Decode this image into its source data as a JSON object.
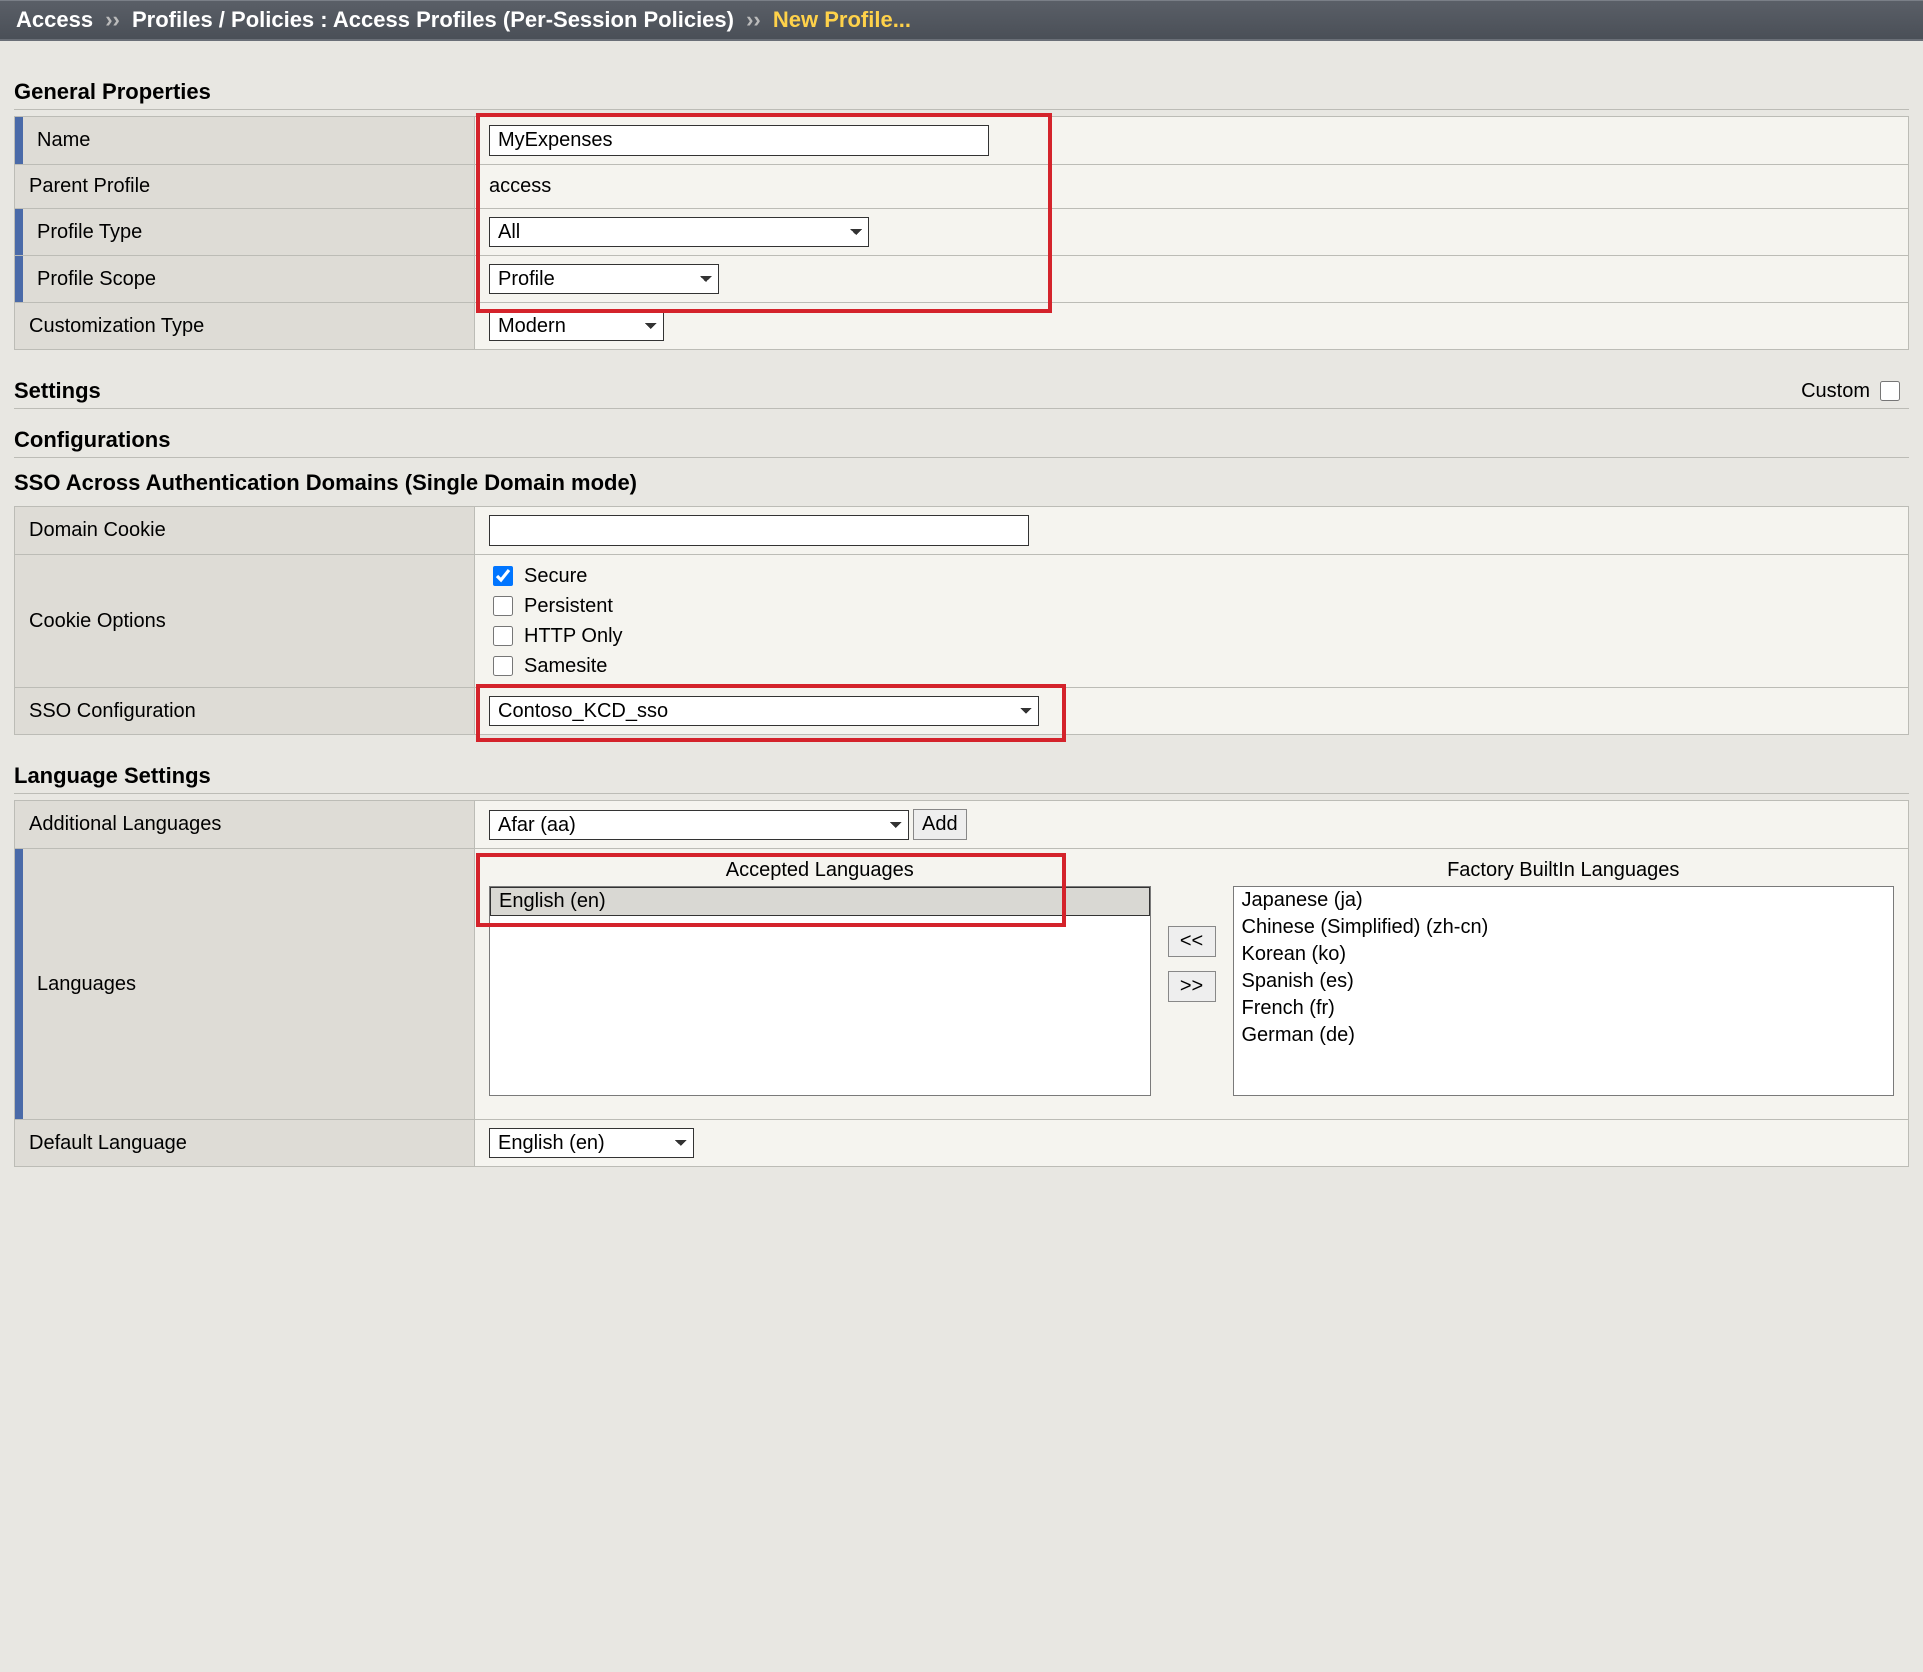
{
  "breadcrumb": {
    "root": "Access",
    "mid": "Profiles / Policies : Access Profiles (Per-Session Policies)",
    "current": "New Profile..."
  },
  "sections": {
    "general": "General Properties",
    "settings": "Settings",
    "custom_label": "Custom",
    "configurations": "Configurations",
    "sso_domains": "SSO Across Authentication Domains (Single Domain mode)",
    "language": "Language Settings"
  },
  "general": {
    "name_label": "Name",
    "name_value": "MyExpenses",
    "parent_label": "Parent Profile",
    "parent_value": "access",
    "type_label": "Profile Type",
    "type_value": "All",
    "scope_label": "Profile Scope",
    "scope_value": "Profile",
    "cust_label": "Customization Type",
    "cust_value": "Modern"
  },
  "sso": {
    "domain_cookie_label": "Domain Cookie",
    "domain_cookie_value": "",
    "cookie_options_label": "Cookie Options",
    "opt_secure": "Secure",
    "opt_persistent": "Persistent",
    "opt_httponly": "HTTP Only",
    "opt_samesite": "Samesite",
    "sso_config_label": "SSO Configuration",
    "sso_config_value": "Contoso_KCD_sso"
  },
  "lang": {
    "additional_label": "Additional Languages",
    "additional_value": "Afar (aa)",
    "add_btn": "Add",
    "languages_label": "Languages",
    "accepted_header": "Accepted Languages",
    "factory_header": "Factory BuiltIn Languages",
    "accepted": [
      "English (en)"
    ],
    "factory": [
      "Japanese (ja)",
      "Chinese (Simplified) (zh-cn)",
      "Korean (ko)",
      "Spanish (es)",
      "French (fr)",
      "German (de)"
    ],
    "move_left": "<<",
    "move_right": ">>",
    "default_label": "Default Language",
    "default_value": "English (en)"
  },
  "highlight_color": "#d4232b"
}
